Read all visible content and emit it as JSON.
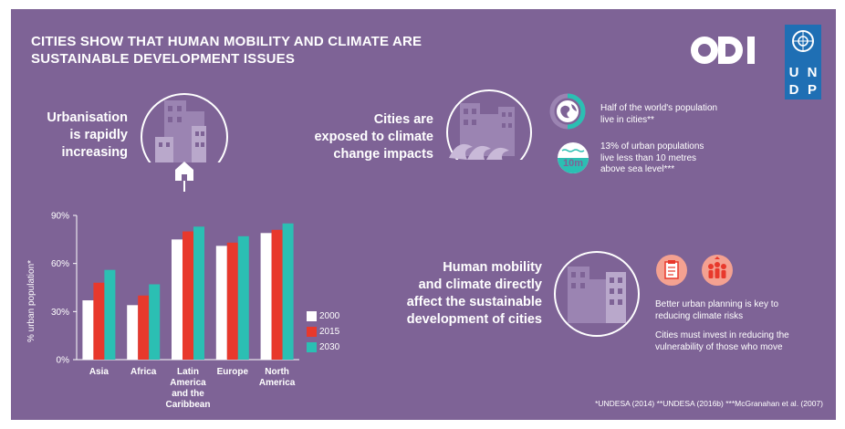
{
  "title": {
    "line1": "CITIES SHOW THAT HUMAN MOBILITY AND CLIMATE ARE",
    "line2": "SUSTAINABLE DEVELOPMENT ISSUES"
  },
  "logos": {
    "odi": "ODI",
    "undp": [
      "U",
      "N",
      "D",
      "P"
    ]
  },
  "urbanisation": {
    "lines": [
      "Urbanisation",
      "is rapidly",
      "increasing"
    ]
  },
  "exposure": {
    "lines": [
      "Cities are",
      "exposed to climate",
      "change impacts"
    ],
    "stat1": [
      "Half of the world's population",
      "live in cities**"
    ],
    "stat2": [
      "13% of urban populations",
      "live less than 10 metres",
      "above sea level***"
    ],
    "badge": "10m",
    "population_share_percent": 50
  },
  "mobility": {
    "lines": [
      "Human mobility",
      "and climate directly",
      "affect the sustainable",
      "development of cities"
    ],
    "point1": [
      "Better urban planning is key to",
      "reducing climate risks"
    ],
    "point2": [
      "Cities must invest in reducing the",
      "vulnerability of those who move"
    ]
  },
  "footnote": "*UNDESA (2014)  **UNDESA (2016b)  ***McGranahan et al. (2007)",
  "colors": {
    "background": "#7E6396",
    "c2000": "#FFFFFF",
    "c2015": "#E8392C",
    "c2030": "#2BBFB3",
    "accent": "#F4A191"
  },
  "chart_data": {
    "type": "bar",
    "ylabel": "% urban population*",
    "ylim": [
      0,
      90
    ],
    "yticks": [
      "0%",
      "30%",
      "60%",
      "90%"
    ],
    "ytick_values": [
      0,
      30,
      60,
      90
    ],
    "categories": [
      [
        "Asia"
      ],
      [
        "Africa"
      ],
      [
        "Latin",
        "America",
        "and the",
        "Caribbean"
      ],
      [
        "Europe"
      ],
      [
        "North",
        "America"
      ]
    ],
    "series": [
      {
        "name": "2000",
        "values": [
          37,
          34,
          75,
          71,
          79
        ]
      },
      {
        "name": "2015",
        "values": [
          48,
          40,
          80,
          73,
          81
        ]
      },
      {
        "name": "2030",
        "values": [
          56,
          47,
          83,
          77,
          85
        ]
      }
    ],
    "legend_position": "right",
    "grid": false
  }
}
